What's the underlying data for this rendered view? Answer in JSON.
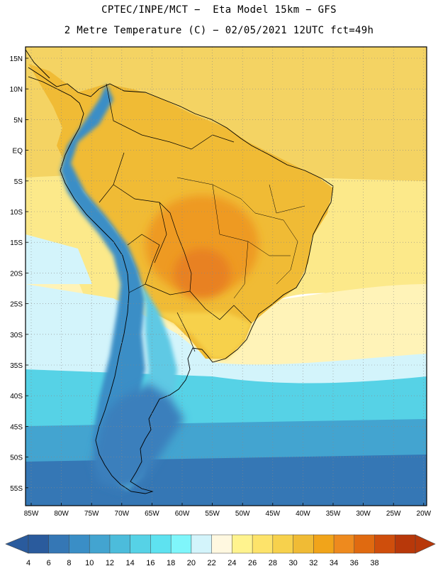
{
  "header": {
    "line1": "CPTEC/INPE/MCT −  Eta Model 15km − GFS",
    "line2": "2 Metre Temperature (C) − 02/05/2021 12UTC fct=49h"
  },
  "axes": {
    "lat_labels": [
      "15N",
      "10N",
      "5N",
      "EQ",
      "5S",
      "10S",
      "15S",
      "20S",
      "25S",
      "30S",
      "35S",
      "40S",
      "45S",
      "50S",
      "55S"
    ],
    "lon_labels": [
      "85W",
      "80W",
      "75W",
      "70W",
      "65W",
      "60W",
      "55W",
      "50W",
      "45W",
      "40W",
      "35W",
      "30W",
      "25W",
      "20W"
    ]
  },
  "legend": {
    "ticks": [
      "4",
      "6",
      "8",
      "10",
      "12",
      "14",
      "16",
      "18",
      "20",
      "22",
      "24",
      "26",
      "28",
      "30",
      "32",
      "34",
      "36",
      "38"
    ],
    "colors": [
      "#2a5b9d",
      "#3577b5",
      "#3a8ec6",
      "#43a4d0",
      "#4cbcdb",
      "#56d2e6",
      "#5ee2f0",
      "#7ff6fb",
      "#d3f4fb",
      "#fff8e0",
      "#fff38e",
      "#fde36a",
      "#f7d14c",
      "#f0bb35",
      "#f1a41a",
      "#ee8a1e",
      "#e06a10",
      "#cf4e0c",
      "#b8380a"
    ],
    "low_arrow_color": "#2a5b9d",
    "high_arrow_color": "#b8380a"
  },
  "field": {
    "ocean_bands": [
      {
        "name": "tropical-north",
        "color": "#f4d363"
      },
      {
        "name": "warm-subtropical",
        "color": "#fce98a"
      },
      {
        "name": "mild-subtropical",
        "color": "#fff3b8"
      },
      {
        "name": "cool-band",
        "color": "#d3f4fb"
      },
      {
        "name": "cold-band",
        "color": "#56d2e6"
      },
      {
        "name": "colder-band",
        "color": "#43a4d0"
      },
      {
        "name": "cold-south",
        "color": "#3577b5"
      }
    ],
    "land": {
      "north_interior": "#f0bb35",
      "central_hot": "#ee9a20",
      "hottest_core": "#e88120",
      "south_interior": "#f7d14c",
      "andes_high": "#3a8ec6",
      "andes_mid": "#5ec9e4",
      "patagonia": "#3a7fbc"
    }
  }
}
